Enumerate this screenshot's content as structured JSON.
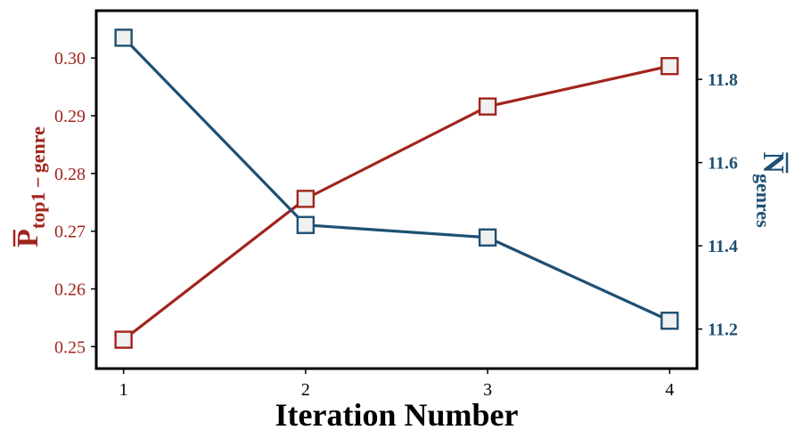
{
  "chart_data": {
    "type": "line",
    "x": [
      1,
      2,
      3,
      4
    ],
    "xlabel": "Iteration Number",
    "x_ticks": [
      "1",
      "2",
      "3",
      "4"
    ],
    "xlim": [
      0.85,
      4.15
    ],
    "y_left": {
      "label_main": "P",
      "label_sub": "top1 − genre",
      "ticks": [
        "0.25",
        "0.26",
        "0.27",
        "0.28",
        "0.29",
        "0.30"
      ],
      "ylim": [
        0.2462,
        0.3082
      ],
      "color": "#a0241c"
    },
    "y_right": {
      "label_main": "N",
      "label_sub": "genres",
      "ticks": [
        "11.2",
        "11.4",
        "11.6",
        "11.8"
      ],
      "ylim": [
        11.105,
        11.965
      ],
      "color": "#1e5073"
    },
    "series": [
      {
        "axis": "left",
        "color": "#a0241c",
        "marker_fill": "#f0f0f0",
        "values": [
          0.2512,
          0.2756,
          0.2916,
          0.2986
        ]
      },
      {
        "axis": "right",
        "color": "#1e5073",
        "marker_fill": "#f0f0f0",
        "values": [
          11.9,
          11.45,
          11.42,
          11.22
        ]
      }
    ],
    "grid": false,
    "legend": "none"
  }
}
